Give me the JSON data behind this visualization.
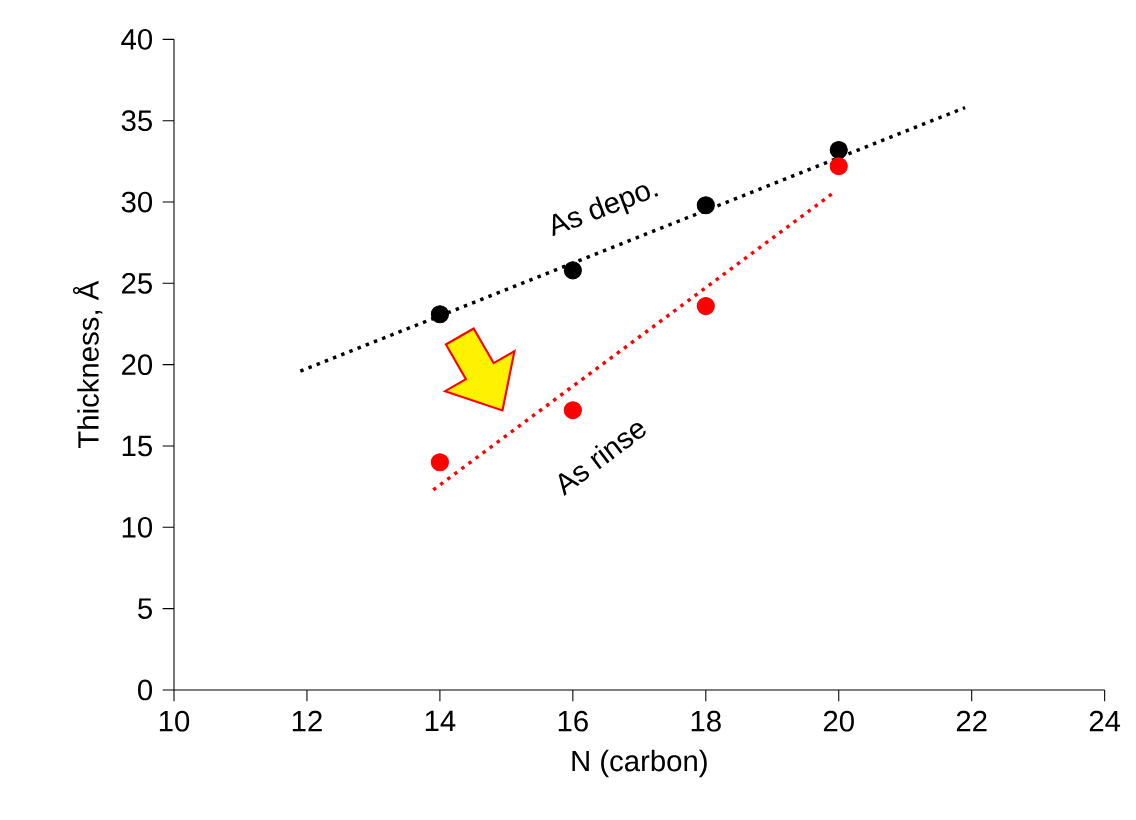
{
  "chart_data": {
    "type": "scatter",
    "xlabel": "N (carbon)",
    "ylabel": "Thickness, Å",
    "xlim": [
      10,
      24
    ],
    "xticks": [
      10,
      12,
      14,
      16,
      18,
      20,
      22,
      24
    ],
    "ylim": [
      0,
      40
    ],
    "yticks": [
      0,
      5,
      10,
      15,
      20,
      25,
      30,
      35,
      40
    ],
    "grid": false,
    "x": [
      14,
      16,
      18,
      20
    ],
    "series": [
      {
        "color": "#000000",
        "values": [
          23.1,
          25.8,
          29.8,
          33.2
        ],
        "marker": "circle"
      },
      {
        "color": "#ff0000",
        "values": [
          14.0,
          17.2,
          23.6,
          32.2
        ],
        "marker": "circle"
      },
      {
        "type": "line",
        "x": [
          11.9,
          21.9
        ],
        "color": "#000000",
        "values": [
          19.6,
          35.8
        ],
        "marker": "none",
        "line_style": "dotted"
      },
      {
        "type": "line",
        "x": [
          13.9,
          19.9
        ],
        "color": "#ff0000",
        "values": [
          12.3,
          30.5
        ],
        "marker": "none",
        "line_style": "dotted"
      }
    ],
    "annotations": [
      "As depo.",
      "As rinse"
    ]
  }
}
